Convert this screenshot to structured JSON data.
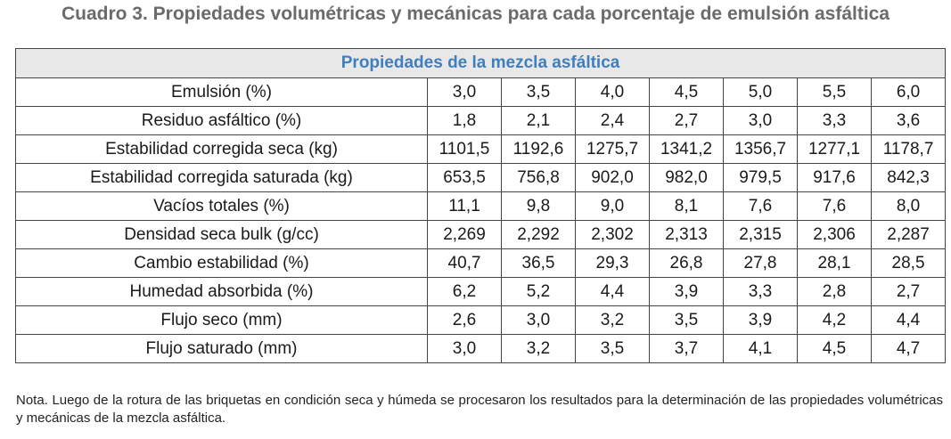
{
  "title": "Cuadro 3. Propiedades volumétricas y mecánicas para cada porcentaje de emulsión asfáltica",
  "table": {
    "section_header": "Propiedades de la mezcla asfáltica",
    "rows": [
      {
        "label": "Emulsión (%)",
        "values": [
          "3,0",
          "3,5",
          "4,0",
          "4,5",
          "5,0",
          "5,5",
          "6,0"
        ]
      },
      {
        "label": "Residuo asfáltico (%)",
        "values": [
          "1,8",
          "2,1",
          "2,4",
          "2,7",
          "3,0",
          "3,3",
          "3,6"
        ]
      },
      {
        "label": "Estabilidad corregida seca (kg)",
        "values": [
          "1101,5",
          "1192,6",
          "1275,7",
          "1341,2",
          "1356,7",
          "1277,1",
          "1178,7"
        ]
      },
      {
        "label": "Estabilidad corregida saturada (kg)",
        "values": [
          "653,5",
          "756,8",
          "902,0",
          "982,0",
          "979,5",
          "917,6",
          "842,3"
        ]
      },
      {
        "label": "Vacíos totales (%)",
        "values": [
          "11,1",
          "9,8",
          "9,0",
          "8,1",
          "7,6",
          "7,6",
          "8,0"
        ]
      },
      {
        "label": "Densidad seca bulk (g/cc)",
        "values": [
          "2,269",
          "2,292",
          "2,302",
          "2,313",
          "2,315",
          "2,306",
          "2,287"
        ]
      },
      {
        "label": "Cambio estabilidad (%)",
        "values": [
          "40,7",
          "36,5",
          "29,3",
          "26,8",
          "27,8",
          "28,1",
          "28,5"
        ]
      },
      {
        "label": "Humedad absorbida (%)",
        "values": [
          "6,2",
          "5,2",
          "4,4",
          "3,9",
          "3,3",
          "2,8",
          "2,7"
        ]
      },
      {
        "label": "Flujo seco (mm)",
        "values": [
          "2,6",
          "3,0",
          "3,2",
          "3,5",
          "3,9",
          "4,2",
          "4,4"
        ]
      },
      {
        "label": "Flujo saturado (mm)",
        "values": [
          "3,0",
          "3,2",
          "3,5",
          "3,7",
          "4,1",
          "4,5",
          "4,7"
        ]
      }
    ]
  },
  "note": "Nota. Luego de la rotura de las briquetas en condición seca y húmeda se procesaron los resultados para la determinación de las propiedades volumétricas y mecánicas de la mezcla asfáltica."
}
